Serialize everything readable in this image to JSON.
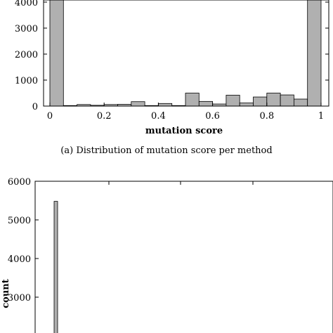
{
  "chart_data": [
    {
      "type": "bar",
      "subtype": "histogram",
      "xlabel": "mutation score",
      "ylabel": "",
      "xlim": [
        0,
        1
      ],
      "ylim": [
        0,
        4000
      ],
      "xticks": [
        "0",
        "0.2",
        "0.4",
        "0.6",
        "0.8",
        "1"
      ],
      "yticks": [
        "0",
        "1000",
        "2000",
        "3000",
        "4000"
      ],
      "bin_width": 0.05,
      "bin_edges_start": [
        0,
        0.05,
        0.1,
        0.15,
        0.2,
        0.25,
        0.3,
        0.35,
        0.4,
        0.45,
        0.5,
        0.55,
        0.6,
        0.65,
        0.7,
        0.75,
        0.8,
        0.85,
        0.9,
        0.95
      ],
      "values": [
        4300,
        20,
        60,
        30,
        60,
        70,
        170,
        20,
        100,
        20,
        500,
        180,
        80,
        420,
        120,
        350,
        500,
        430,
        270,
        4300
      ],
      "bar_color": "#b0b0b0",
      "grid": false,
      "caption": "(a) Distribution of mutation score per method"
    },
    {
      "type": "bar",
      "subtype": "histogram",
      "xlabel": "",
      "ylabel": "count",
      "ylim": [
        2000,
        6000
      ],
      "yticks": [
        "3000",
        "4000",
        "5000",
        "6000"
      ],
      "values": [
        5480
      ],
      "bar_color": "#b0b0b0",
      "grid": false
    }
  ]
}
